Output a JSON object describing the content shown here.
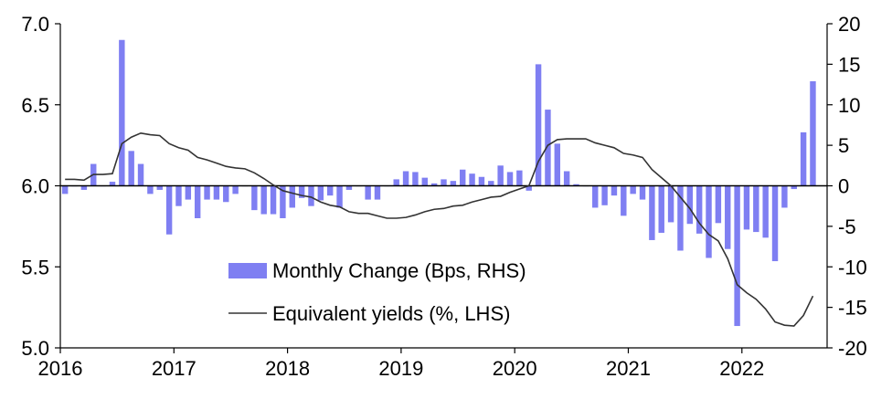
{
  "chart_data": {
    "type": "bar+line",
    "left_axis": {
      "ylim": [
        5.0,
        7.0
      ],
      "ticks": [
        "5.0",
        "5.5",
        "6.0",
        "6.5",
        "7.0"
      ]
    },
    "right_axis": {
      "ylim": [
        -20,
        20
      ],
      "ticks": [
        "-20",
        "-15",
        "-10",
        "-5",
        "0",
        "5",
        "10",
        "15",
        "20"
      ]
    },
    "x_axis": {
      "start_year": 2016,
      "end_year": 2022.75,
      "ticks": [
        "2016",
        "2017",
        "2018",
        "2019",
        "2020",
        "2021",
        "2022"
      ]
    },
    "legend": {
      "placement": "center-left",
      "entries": [
        "Monthly Change (Bps, RHS)",
        "Equivalent yields (%, LHS)"
      ]
    },
    "colors": {
      "bars": "#7f7ff2",
      "line": "#333333",
      "axis": "#000000"
    },
    "series": [
      {
        "name": "Monthly Change (Bps, RHS)",
        "axis": "right",
        "kind": "bar",
        "start": "2016-01",
        "values": [
          -1,
          0,
          -0.5,
          2.7,
          0,
          0.5,
          18,
          4.3,
          2.7,
          -1,
          -0.5,
          -6,
          -2.5,
          -1.7,
          -4,
          -1.7,
          -1.7,
          -2,
          -1,
          0,
          -3,
          -3.5,
          -3.5,
          -4,
          -2.7,
          -1.5,
          -2.5,
          -1.8,
          -1.2,
          -2.7,
          -0.5,
          0,
          -1.7,
          -1.7,
          0,
          0.8,
          1.8,
          1.7,
          1,
          0.3,
          0.8,
          0.6,
          2,
          1.5,
          1.1,
          0.6,
          2.5,
          1.7,
          1.9,
          -0.6,
          15,
          9.4,
          5.2,
          1.8,
          0.2,
          0,
          -2.7,
          -2.4,
          -1.2,
          -3.7,
          -1,
          -1.7,
          -6.7,
          -5.8,
          -4.5,
          -8,
          -4.7,
          -5.9,
          -8.9,
          -4.6,
          -7.8,
          -17.3,
          -5.4,
          -5.7,
          -6.4,
          -9.3,
          -2.7,
          -0.4,
          6.6,
          12.9
        ]
      },
      {
        "name": "Equivalent yields (%, LHS)",
        "axis": "left",
        "kind": "line",
        "start": "2016-01",
        "values": [
          6.04,
          6.04,
          6.035,
          6.07,
          6.07,
          6.075,
          6.26,
          6.3,
          6.325,
          6.315,
          6.31,
          6.26,
          6.235,
          6.22,
          6.175,
          6.16,
          6.14,
          6.12,
          6.11,
          6.105,
          6.08,
          6.045,
          6.005,
          5.97,
          5.955,
          5.94,
          5.93,
          5.9,
          5.88,
          5.87,
          5.84,
          5.83,
          5.83,
          5.815,
          5.8,
          5.8,
          5.805,
          5.82,
          5.84,
          5.855,
          5.86,
          5.875,
          5.88,
          5.9,
          5.915,
          5.93,
          5.935,
          5.96,
          5.98,
          6.0,
          6.15,
          6.25,
          6.285,
          6.29,
          6.29,
          6.29,
          6.265,
          6.25,
          6.235,
          6.2,
          6.19,
          6.175,
          6.1,
          6.05,
          6.0,
          5.93,
          5.86,
          5.77,
          5.7,
          5.66,
          5.55,
          5.39,
          5.34,
          5.3,
          5.24,
          5.16,
          5.14,
          5.135,
          5.2,
          5.32
        ]
      }
    ]
  }
}
